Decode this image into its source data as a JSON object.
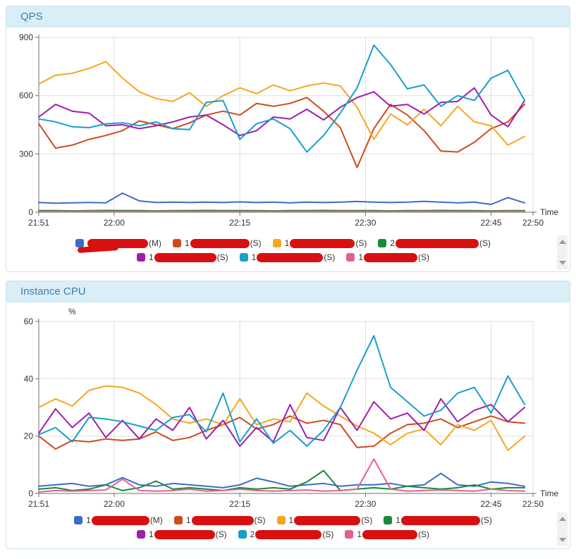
{
  "theme": {
    "panel_header_bg": "#daeef8",
    "panel_border": "#c9e4f1",
    "panel_title_color": "#3f7fa6",
    "redaction_color": "#d8100f",
    "axis_color": "#6e6e6e",
    "grid_color": "#dddddd",
    "tick_text_color": "#333333"
  },
  "chart_data": [
    {
      "type": "line",
      "title": "QPS",
      "xlabel": "Time",
      "ylabel": "",
      "ylim": [
        0,
        900
      ],
      "yticks": [
        0,
        300,
        600,
        900
      ],
      "x_total_minutes": 59,
      "xticks": [
        {
          "label": "21:51",
          "min": 0
        },
        {
          "label": "22:00",
          "min": 9
        },
        {
          "label": "22:15",
          "min": 24
        },
        {
          "label": "22:30",
          "min": 39
        },
        {
          "label": "22:45",
          "min": 54
        },
        {
          "label": "22:50",
          "min": 59
        }
      ],
      "x_minutes": [
        0,
        2,
        4,
        6,
        8,
        10,
        12,
        14,
        16,
        18,
        20,
        22,
        24,
        26,
        28,
        30,
        32,
        34,
        36,
        38,
        40,
        42,
        44,
        46,
        48,
        50,
        52,
        54,
        56,
        58
      ],
      "series": [
        {
          "id": "blue",
          "color": "#3d6bc5",
          "legend": {
            "prefix": "",
            "suffix": "(M)",
            "redacted": true,
            "blob_w": 86,
            "tail": true
          },
          "values": [
            50,
            46,
            48,
            50,
            48,
            98,
            58,
            50,
            52,
            50,
            52,
            50,
            53,
            50,
            52,
            48,
            52,
            50,
            52,
            55,
            52,
            50,
            52,
            56,
            52,
            48,
            52,
            40,
            75,
            48
          ]
        },
        {
          "id": "red",
          "color": "#cf4a1e",
          "legend": {
            "prefix": "1",
            "suffix": "(S)",
            "redacted": true,
            "blob_w": 84,
            "tail": false
          },
          "values": [
            455,
            330,
            345,
            375,
            395,
            420,
            470,
            450,
            430,
            460,
            500,
            520,
            500,
            560,
            545,
            560,
            590,
            520,
            435,
            230,
            430,
            555,
            500,
            420,
            315,
            310,
            360,
            430,
            465,
            555
          ]
        },
        {
          "id": "orange",
          "color": "#f5a623",
          "legend": {
            "prefix": "1",
            "suffix": "(S)",
            "redacted": true,
            "blob_w": 92,
            "tail": false
          },
          "values": [
            660,
            705,
            715,
            740,
            775,
            690,
            620,
            585,
            570,
            615,
            545,
            600,
            640,
            610,
            655,
            625,
            650,
            665,
            650,
            540,
            375,
            505,
            450,
            530,
            445,
            545,
            465,
            445,
            345,
            390
          ]
        },
        {
          "id": "green",
          "color": "#178a3b",
          "legend": {
            "prefix": "2",
            "suffix": "(S)",
            "redacted": true,
            "blob_w": 118,
            "tail": false
          },
          "values": [
            8,
            8,
            7,
            8,
            9,
            8,
            8,
            7,
            8,
            8,
            9,
            8,
            8,
            8,
            7,
            8,
            8,
            9,
            8,
            8,
            8,
            7,
            8,
            8,
            9,
            8,
            8,
            7,
            8,
            8
          ]
        },
        {
          "id": "purple",
          "color": "#9e1fad",
          "legend": {
            "prefix": "1",
            "suffix": "(S)",
            "redacted": true,
            "blob_w": 88,
            "tail": false
          },
          "values": [
            490,
            555,
            520,
            510,
            445,
            450,
            430,
            445,
            465,
            490,
            500,
            450,
            395,
            420,
            490,
            480,
            530,
            475,
            540,
            590,
            620,
            545,
            555,
            505,
            565,
            570,
            640,
            500,
            440,
            575
          ]
        },
        {
          "id": "cyan",
          "color": "#189fcb",
          "legend": {
            "prefix": "1",
            "suffix": "(S)",
            "redacted": true,
            "blob_w": 94,
            "tail": false
          },
          "values": [
            480,
            465,
            440,
            435,
            455,
            460,
            445,
            465,
            430,
            425,
            565,
            575,
            375,
            455,
            480,
            430,
            310,
            395,
            510,
            640,
            860,
            760,
            635,
            655,
            545,
            600,
            575,
            690,
            730,
            575
          ]
        },
        {
          "id": "pink",
          "color": "#e4608c",
          "legend": {
            "prefix": "1",
            "suffix": "(S)",
            "redacted": true,
            "blob_w": 76,
            "tail": false
          },
          "values": [
            4,
            4,
            4,
            5,
            4,
            4,
            4,
            4,
            5,
            4,
            4,
            4,
            4,
            5,
            4,
            4,
            4,
            4,
            5,
            4,
            4,
            4,
            4,
            5,
            4,
            4,
            4,
            4,
            5,
            4
          ]
        }
      ]
    },
    {
      "type": "line",
      "title": "Instance CPU",
      "xlabel": "Time",
      "ylabel": "%",
      "ylim": [
        0,
        60
      ],
      "yticks": [
        0,
        20,
        40,
        60
      ],
      "x_total_minutes": 59,
      "xticks": [
        {
          "label": "21:51",
          "min": 0
        },
        {
          "label": "22:00",
          "min": 9
        },
        {
          "label": "22:15",
          "min": 24
        },
        {
          "label": "22:30",
          "min": 39
        },
        {
          "label": "22:45",
          "min": 54
        },
        {
          "label": "22:50",
          "min": 59
        }
      ],
      "x_minutes": [
        0,
        2,
        4,
        6,
        8,
        10,
        12,
        14,
        16,
        18,
        20,
        22,
        24,
        26,
        28,
        30,
        32,
        34,
        36,
        38,
        40,
        42,
        44,
        46,
        48,
        50,
        52,
        54,
        56,
        58
      ],
      "series": [
        {
          "id": "blue",
          "color": "#3d6bc5",
          "legend": {
            "prefix": "1",
            "suffix": "(M)",
            "redacted": true,
            "blob_w": 82,
            "tail": false
          },
          "values": [
            2.5,
            3,
            3.5,
            2.5,
            3,
            5.5,
            3,
            2.5,
            3.5,
            3,
            2.5,
            2,
            3,
            5.3,
            4,
            2.5,
            3,
            3.5,
            2.5,
            3,
            3,
            3.5,
            2.5,
            3,
            7,
            3,
            2.5,
            4,
            3.5,
            2.5
          ]
        },
        {
          "id": "red",
          "color": "#cf4a1e",
          "legend": {
            "prefix": "1",
            "suffix": "(S)",
            "redacted": true,
            "blob_w": 88,
            "tail": false
          },
          "values": [
            20,
            15.5,
            18.5,
            18,
            19,
            18.5,
            19,
            21.5,
            18.5,
            19.5,
            22,
            24,
            26.5,
            22.5,
            24,
            27,
            24.5,
            25.5,
            24,
            16,
            16.5,
            21,
            24,
            24.5,
            26,
            23,
            25,
            27,
            25,
            24.5
          ]
        },
        {
          "id": "orange",
          "color": "#f5a623",
          "legend": {
            "prefix": "1",
            "suffix": "(S)",
            "redacted": true,
            "blob_w": 94,
            "tail": false
          },
          "values": [
            30,
            33,
            30.5,
            36,
            37.5,
            37,
            35,
            31,
            26,
            24.5,
            26,
            24,
            33,
            24,
            26,
            25,
            35,
            30.5,
            27,
            23.5,
            21,
            17,
            21,
            22.5,
            17,
            24,
            22,
            25.5,
            15,
            20
          ]
        },
        {
          "id": "green",
          "color": "#178a3b",
          "legend": {
            "prefix": "1",
            "suffix": "(S)",
            "redacted": true,
            "blob_w": 112,
            "tail": false
          },
          "values": [
            1.5,
            2,
            1,
            1.5,
            3,
            1,
            2,
            4.3,
            1.5,
            2,
            1.5,
            1,
            2,
            1.5,
            2,
            1.5,
            4,
            8,
            1,
            1.5,
            2,
            1.5,
            2.5,
            2,
            1.5,
            2,
            3,
            1.5,
            2,
            2
          ]
        },
        {
          "id": "purple",
          "color": "#9e1fad",
          "legend": {
            "prefix": "1",
            "suffix": "(S)",
            "redacted": true,
            "blob_w": 86,
            "tail": false
          },
          "values": [
            21,
            29.5,
            23,
            28,
            19.5,
            25.5,
            19,
            26,
            22,
            30,
            19,
            25.5,
            16.5,
            23,
            18,
            31,
            19.5,
            18.5,
            30,
            22,
            32,
            26,
            28,
            22,
            33,
            25,
            29,
            31,
            25,
            30
          ]
        },
        {
          "id": "cyan",
          "color": "#189fcb",
          "legend": {
            "prefix": "2",
            "suffix": "(S)",
            "redacted": true,
            "blob_w": 94,
            "tail": false
          },
          "values": [
            20.5,
            23,
            18,
            26.5,
            26,
            25,
            23.5,
            22,
            26.5,
            27.5,
            21.5,
            35,
            18,
            26,
            17.5,
            22,
            16.5,
            22,
            30,
            43,
            55,
            37,
            32,
            27,
            29,
            35,
            37,
            28,
            41,
            31
          ]
        },
        {
          "id": "pink",
          "color": "#e4608c",
          "legend": {
            "prefix": "1",
            "suffix": "(S)",
            "redacted": true,
            "blob_w": 78,
            "tail": false
          },
          "values": [
            0.5,
            1,
            0.8,
            1,
            1.2,
            5,
            1,
            0.8,
            1,
            1.5,
            0.8,
            1,
            1.5,
            1,
            0.8,
            1,
            1.2,
            0.8,
            1,
            1.5,
            12,
            1.5,
            0.8,
            1,
            1.2,
            1,
            0.8,
            1.5,
            1,
            0.8
          ]
        }
      ]
    }
  ]
}
